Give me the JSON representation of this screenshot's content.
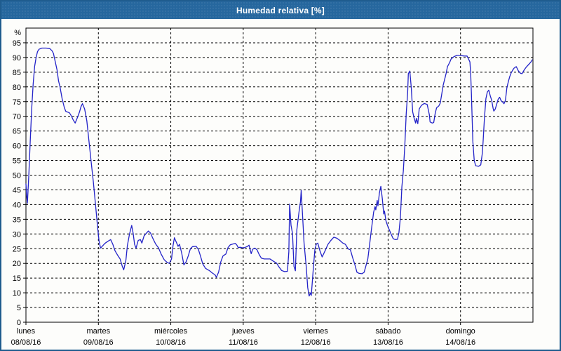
{
  "title": "Humedad relativa [%]",
  "colors": {
    "titlebar_bg": "#26679e",
    "window_border": "#1f5c8e",
    "line": "#2323c8",
    "grid": "#000000",
    "background": "#fdfdfb",
    "title_text": "#ffffff"
  },
  "chart_data": {
    "type": "line",
    "title": "Humedad relativa [%]",
    "ylabel": "%",
    "ylim": [
      0,
      100
    ],
    "yticks": [
      0,
      5,
      10,
      15,
      20,
      25,
      30,
      35,
      40,
      45,
      50,
      55,
      60,
      65,
      70,
      75,
      80,
      85,
      90,
      95
    ],
    "grid": "dashed",
    "legend": "none",
    "days": [
      {
        "name": "lunes",
        "date": "08/08/16"
      },
      {
        "name": "martes",
        "date": "09/08/16"
      },
      {
        "name": "miércoles",
        "date": "10/08/16"
      },
      {
        "name": "jueves",
        "date": "11/08/16"
      },
      {
        "name": "viernes",
        "date": "12/08/16"
      },
      {
        "name": "sábado",
        "date": "13/08/16"
      },
      {
        "name": "domingo",
        "date": "14/08/16"
      }
    ],
    "series": [
      {
        "name": "Humedad relativa",
        "x_unit": "days since 08/08/16 00:00",
        "points": [
          [
            0.0,
            47
          ],
          [
            0.01,
            43
          ],
          [
            0.02,
            40.5
          ],
          [
            0.04,
            50
          ],
          [
            0.06,
            62
          ],
          [
            0.08,
            73
          ],
          [
            0.1,
            81
          ],
          [
            0.12,
            87
          ],
          [
            0.14,
            90
          ],
          [
            0.16,
            92
          ],
          [
            0.18,
            92.8
          ],
          [
            0.22,
            93.2
          ],
          [
            0.28,
            93.2
          ],
          [
            0.33,
            93
          ],
          [
            0.36,
            92.3
          ],
          [
            0.38,
            91.4
          ],
          [
            0.41,
            88
          ],
          [
            0.43,
            85.7
          ],
          [
            0.45,
            82
          ],
          [
            0.47,
            80.1
          ],
          [
            0.5,
            76
          ],
          [
            0.53,
            73
          ],
          [
            0.55,
            71.7
          ],
          [
            0.6,
            71.2
          ],
          [
            0.63,
            70
          ],
          [
            0.65,
            68.9
          ],
          [
            0.68,
            67.7
          ],
          [
            0.71,
            69.5
          ],
          [
            0.74,
            71.5
          ],
          [
            0.76,
            73.3
          ],
          [
            0.78,
            74.3
          ],
          [
            0.81,
            72.5
          ],
          [
            0.84,
            68.5
          ],
          [
            0.87,
            61.5
          ],
          [
            0.9,
            54.5
          ],
          [
            0.93,
            47.7
          ],
          [
            0.96,
            40
          ],
          [
            0.99,
            32
          ],
          [
            1.01,
            27.5
          ],
          [
            1.03,
            25.2
          ],
          [
            1.06,
            26
          ],
          [
            1.09,
            26.8
          ],
          [
            1.13,
            27.5
          ],
          [
            1.17,
            28.1
          ],
          [
            1.2,
            26.5
          ],
          [
            1.23,
            24.3
          ],
          [
            1.27,
            22.6
          ],
          [
            1.3,
            21.5
          ],
          [
            1.33,
            19
          ],
          [
            1.35,
            17.8
          ],
          [
            1.38,
            21
          ],
          [
            1.4,
            26
          ],
          [
            1.43,
            30
          ],
          [
            1.46,
            32.9
          ],
          [
            1.48,
            30.2
          ],
          [
            1.5,
            26.5
          ],
          [
            1.52,
            25.2
          ],
          [
            1.55,
            27.8
          ],
          [
            1.58,
            28.1
          ],
          [
            1.6,
            26.9
          ],
          [
            1.63,
            29.3
          ],
          [
            1.66,
            30.2
          ],
          [
            1.69,
            31
          ],
          [
            1.72,
            30.3
          ],
          [
            1.75,
            28.6
          ],
          [
            1.79,
            26.6
          ],
          [
            1.83,
            25.3
          ],
          [
            1.87,
            23
          ],
          [
            1.91,
            21.2
          ],
          [
            1.95,
            20.3
          ],
          [
            1.98,
            20
          ],
          [
            2.01,
            21.5
          ],
          [
            2.03,
            26
          ],
          [
            2.05,
            28.7
          ],
          [
            2.08,
            27
          ],
          [
            2.1,
            25.8
          ],
          [
            2.12,
            26.5
          ],
          [
            2.15,
            23.5
          ],
          [
            2.18,
            19.5
          ],
          [
            2.21,
            20.5
          ],
          [
            2.24,
            22.5
          ],
          [
            2.27,
            25
          ],
          [
            2.3,
            25.7
          ],
          [
            2.35,
            25.8
          ],
          [
            2.38,
            24.8
          ],
          [
            2.41,
            22.5
          ],
          [
            2.44,
            19.9
          ],
          [
            2.48,
            18.3
          ],
          [
            2.53,
            17.6
          ],
          [
            2.57,
            16.8
          ],
          [
            2.61,
            16.1
          ],
          [
            2.63,
            15.3
          ],
          [
            2.66,
            17
          ],
          [
            2.69,
            20.5
          ],
          [
            2.72,
            22.5
          ],
          [
            2.76,
            23.2
          ],
          [
            2.79,
            25.4
          ],
          [
            2.82,
            26.3
          ],
          [
            2.86,
            26.6
          ],
          [
            2.89,
            26.8
          ],
          [
            2.91,
            26.3
          ],
          [
            2.93,
            25.4
          ],
          [
            2.96,
            25.5
          ],
          [
            3.0,
            25.2
          ],
          [
            3.03,
            25.5
          ],
          [
            3.06,
            25.8
          ],
          [
            3.08,
            26.2
          ],
          [
            3.11,
            23.3
          ],
          [
            3.13,
            24.8
          ],
          [
            3.16,
            25.2
          ],
          [
            3.19,
            24.6
          ],
          [
            3.22,
            23
          ],
          [
            3.25,
            21.8
          ],
          [
            3.29,
            21.5
          ],
          [
            3.37,
            21.5
          ],
          [
            3.42,
            20.7
          ],
          [
            3.46,
            20.1
          ],
          [
            3.49,
            18.9
          ],
          [
            3.53,
            17.6
          ],
          [
            3.57,
            17.2
          ],
          [
            3.61,
            17.3
          ],
          [
            3.63,
            24
          ],
          [
            3.64,
            40.2
          ],
          [
            3.66,
            33
          ],
          [
            3.68,
            30.2
          ],
          [
            3.7,
            19
          ],
          [
            3.72,
            17.5
          ],
          [
            3.74,
            31.4
          ],
          [
            3.77,
            37.5
          ],
          [
            3.79,
            41
          ],
          [
            3.8,
            44.8
          ],
          [
            3.82,
            35.7
          ],
          [
            3.84,
            26.9
          ],
          [
            3.87,
            18.9
          ],
          [
            3.89,
            11.8
          ],
          [
            3.91,
            8.9
          ],
          [
            3.93,
            10
          ],
          [
            3.94,
            9.1
          ],
          [
            3.97,
            18.9
          ],
          [
            3.99,
            24.9
          ],
          [
            4.01,
            26.6
          ],
          [
            4.03,
            26.9
          ],
          [
            4.06,
            24.2
          ],
          [
            4.09,
            22.2
          ],
          [
            4.13,
            24.3
          ],
          [
            4.17,
            26.5
          ],
          [
            4.21,
            27.8
          ],
          [
            4.25,
            28.9
          ],
          [
            4.29,
            28.6
          ],
          [
            4.33,
            27.9
          ],
          [
            4.37,
            27
          ],
          [
            4.41,
            26.5
          ],
          [
            4.45,
            24.9
          ],
          [
            4.48,
            24.6
          ],
          [
            4.51,
            22
          ],
          [
            4.54,
            19.7
          ],
          [
            4.57,
            17
          ],
          [
            4.6,
            16.6
          ],
          [
            4.64,
            16.5
          ],
          [
            4.67,
            17
          ],
          [
            4.69,
            18.8
          ],
          [
            4.72,
            21.5
          ],
          [
            4.74,
            25.5
          ],
          [
            4.76,
            29.5
          ],
          [
            4.78,
            33.5
          ],
          [
            4.8,
            37.4
          ],
          [
            4.82,
            39.3
          ],
          [
            4.83,
            38.2
          ],
          [
            4.85,
            41.4
          ],
          [
            4.86,
            39.6
          ],
          [
            4.88,
            43.9
          ],
          [
            4.9,
            46.2
          ],
          [
            4.92,
            42
          ],
          [
            4.94,
            36.8
          ],
          [
            4.95,
            37.8
          ],
          [
            4.97,
            34.5
          ],
          [
            4.99,
            33
          ],
          [
            5.01,
            31.8
          ],
          [
            5.04,
            30
          ],
          [
            5.07,
            28.4
          ],
          [
            5.1,
            28.1
          ],
          [
            5.13,
            28.2
          ],
          [
            5.15,
            30.5
          ],
          [
            5.17,
            35.7
          ],
          [
            5.19,
            46.1
          ],
          [
            5.21,
            51.3
          ],
          [
            5.23,
            59.7
          ],
          [
            5.25,
            71
          ],
          [
            5.27,
            78
          ],
          [
            5.28,
            84.5
          ],
          [
            5.3,
            85.4
          ],
          [
            5.32,
            79.7
          ],
          [
            5.34,
            71.5
          ],
          [
            5.36,
            69.3
          ],
          [
            5.38,
            67.7
          ],
          [
            5.39,
            69.3
          ],
          [
            5.41,
            67.5
          ],
          [
            5.43,
            72.5
          ],
          [
            5.46,
            73.7
          ],
          [
            5.5,
            74.4
          ],
          [
            5.54,
            74
          ],
          [
            5.57,
            70.5
          ],
          [
            5.58,
            68.1
          ],
          [
            5.61,
            67.7
          ],
          [
            5.63,
            67.9
          ],
          [
            5.65,
            71
          ],
          [
            5.67,
            72.9
          ],
          [
            5.7,
            73.5
          ],
          [
            5.72,
            74.5
          ],
          [
            5.74,
            77.5
          ],
          [
            5.76,
            80.5
          ],
          [
            5.78,
            82.5
          ],
          [
            5.8,
            84.5
          ],
          [
            5.82,
            86.9
          ],
          [
            5.85,
            88.3
          ],
          [
            5.87,
            89.5
          ],
          [
            5.91,
            90.3
          ],
          [
            5.95,
            90.7
          ],
          [
            6.0,
            90.7
          ],
          [
            6.05,
            90.5
          ],
          [
            6.09,
            90.5
          ],
          [
            6.11,
            89.5
          ],
          [
            6.13,
            88.5
          ],
          [
            6.14,
            84.5
          ],
          [
            6.15,
            78
          ],
          [
            6.16,
            70
          ],
          [
            6.17,
            61.4
          ],
          [
            6.19,
            54.9
          ],
          [
            6.21,
            53.2
          ],
          [
            6.25,
            53
          ],
          [
            6.28,
            53.5
          ],
          [
            6.3,
            57.3
          ],
          [
            6.31,
            60.5
          ],
          [
            6.33,
            69.3
          ],
          [
            6.35,
            76
          ],
          [
            6.37,
            78.2
          ],
          [
            6.39,
            78.9
          ],
          [
            6.41,
            77
          ],
          [
            6.43,
            75.5
          ],
          [
            6.45,
            72.7
          ],
          [
            6.46,
            71.8
          ],
          [
            6.48,
            72.5
          ],
          [
            6.5,
            74.2
          ],
          [
            6.52,
            75.8
          ],
          [
            6.54,
            76.5
          ],
          [
            6.56,
            75.3
          ],
          [
            6.58,
            74.9
          ],
          [
            6.6,
            74.3
          ],
          [
            6.62,
            75.5
          ],
          [
            6.64,
            79.7
          ],
          [
            6.66,
            81.8
          ],
          [
            6.68,
            83.5
          ],
          [
            6.7,
            84.8
          ],
          [
            6.72,
            85.7
          ],
          [
            6.74,
            86.4
          ],
          [
            6.77,
            86.9
          ],
          [
            6.8,
            85.4
          ],
          [
            6.83,
            84.6
          ],
          [
            6.85,
            84.5
          ],
          [
            6.88,
            85.8
          ],
          [
            6.91,
            86.8
          ],
          [
            6.94,
            87.6
          ],
          [
            6.97,
            88.4
          ],
          [
            6.99,
            89.2
          ]
        ]
      }
    ]
  }
}
